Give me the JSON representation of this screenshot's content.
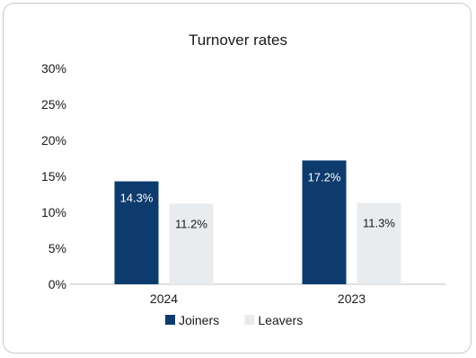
{
  "chart_data": {
    "type": "bar",
    "title": "Turnover rates",
    "categories": [
      "2024",
      "2023"
    ],
    "series": [
      {
        "name": "Joiners",
        "values": [
          14.3,
          17.2
        ],
        "labels": [
          "14.3%",
          "17.2%"
        ],
        "color": "#0d3b6e"
      },
      {
        "name": "Leavers",
        "values": [
          11.2,
          11.3
        ],
        "labels": [
          "11.2%",
          "11.3%"
        ],
        "color": "#e9ecef"
      }
    ],
    "ylim": [
      0,
      30
    ],
    "yticks": [
      "0%",
      "5%",
      "10%",
      "15%",
      "20%",
      "25%",
      "30%"
    ],
    "grid": false,
    "legend": "bottom",
    "xlabel": "",
    "ylabel": ""
  }
}
